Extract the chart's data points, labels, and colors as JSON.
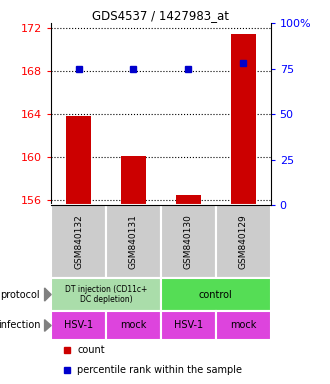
{
  "title": "GDS4537 / 1427983_at",
  "samples": [
    "GSM840132",
    "GSM840131",
    "GSM840130",
    "GSM840129"
  ],
  "bar_values": [
    163.8,
    160.1,
    156.5,
    171.5
  ],
  "percentile_values": [
    75,
    75,
    75,
    78
  ],
  "ylim_left": [
    155.5,
    172.5
  ],
  "ylim_right": [
    0,
    100
  ],
  "yticks_left": [
    156,
    160,
    164,
    168,
    172
  ],
  "yticks_right": [
    0,
    25,
    50,
    75,
    100
  ],
  "ytick_labels_right": [
    "0",
    "25",
    "50",
    "75",
    "100%"
  ],
  "bar_color": "#cc0000",
  "percentile_color": "#0000cc",
  "grid_color": "#000000",
  "infection_labels": [
    "HSV-1",
    "mock",
    "HSV-1",
    "mock"
  ],
  "infection_color": "#dd44dd",
  "sample_bg_color": "#cccccc",
  "protocol_left_label": "DT injection (CD11c+\nDC depletion)",
  "protocol_right_label": "control",
  "protocol_left_color": "#aaddaa",
  "protocol_right_color": "#55dd55",
  "row_label_protocol": "protocol",
  "row_label_infection": "infection",
  "legend_count_color": "#cc0000",
  "legend_percentile_color": "#0000cc",
  "bg_color": "#ffffff"
}
